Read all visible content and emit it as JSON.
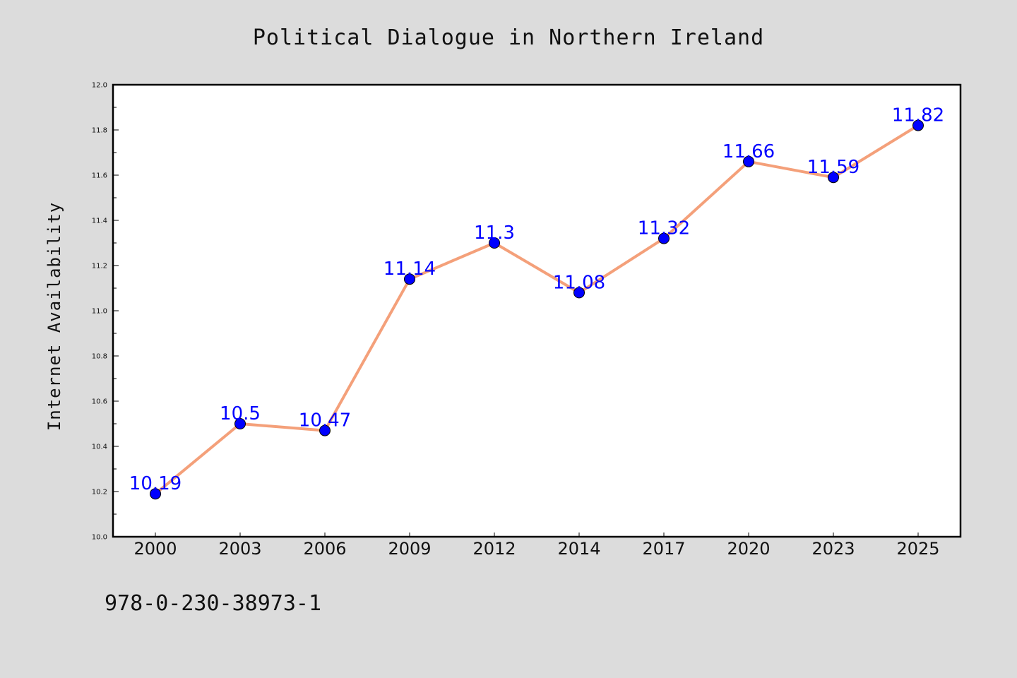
{
  "isbn": "978-0-230-38973-1",
  "colors": {
    "background": "#dcdcdc",
    "plot_background": "#ffffff",
    "line": "#f4a07a",
    "marker": "#0000ff",
    "data_label": "#0000ff"
  },
  "chart_data": {
    "type": "line",
    "title": "Political Dialogue in Northern Ireland",
    "xlabel": "",
    "ylabel": "Internet Availability",
    "categories": [
      "2000",
      "2003",
      "2006",
      "2009",
      "2012",
      "2014",
      "2017",
      "2020",
      "2023",
      "2025"
    ],
    "series": [
      {
        "values": [
          10.19,
          10.5,
          10.47,
          11.14,
          11.3,
          11.08,
          11.32,
          11.66,
          11.59,
          11.82
        ],
        "labels": [
          "10.19",
          "10.5",
          "10.47",
          "11.14",
          "11.3",
          "11.08",
          "11.32",
          "11.66",
          "11.59",
          "11.82"
        ]
      }
    ],
    "ylim": [
      10.0,
      12.0
    ],
    "yticks": [
      "10.0",
      "10.2",
      "10.4",
      "10.6",
      "10.8",
      "11.0",
      "11.2",
      "11.4",
      "11.6",
      "11.8",
      "12.0"
    ],
    "grid": false,
    "legend": "none"
  }
}
